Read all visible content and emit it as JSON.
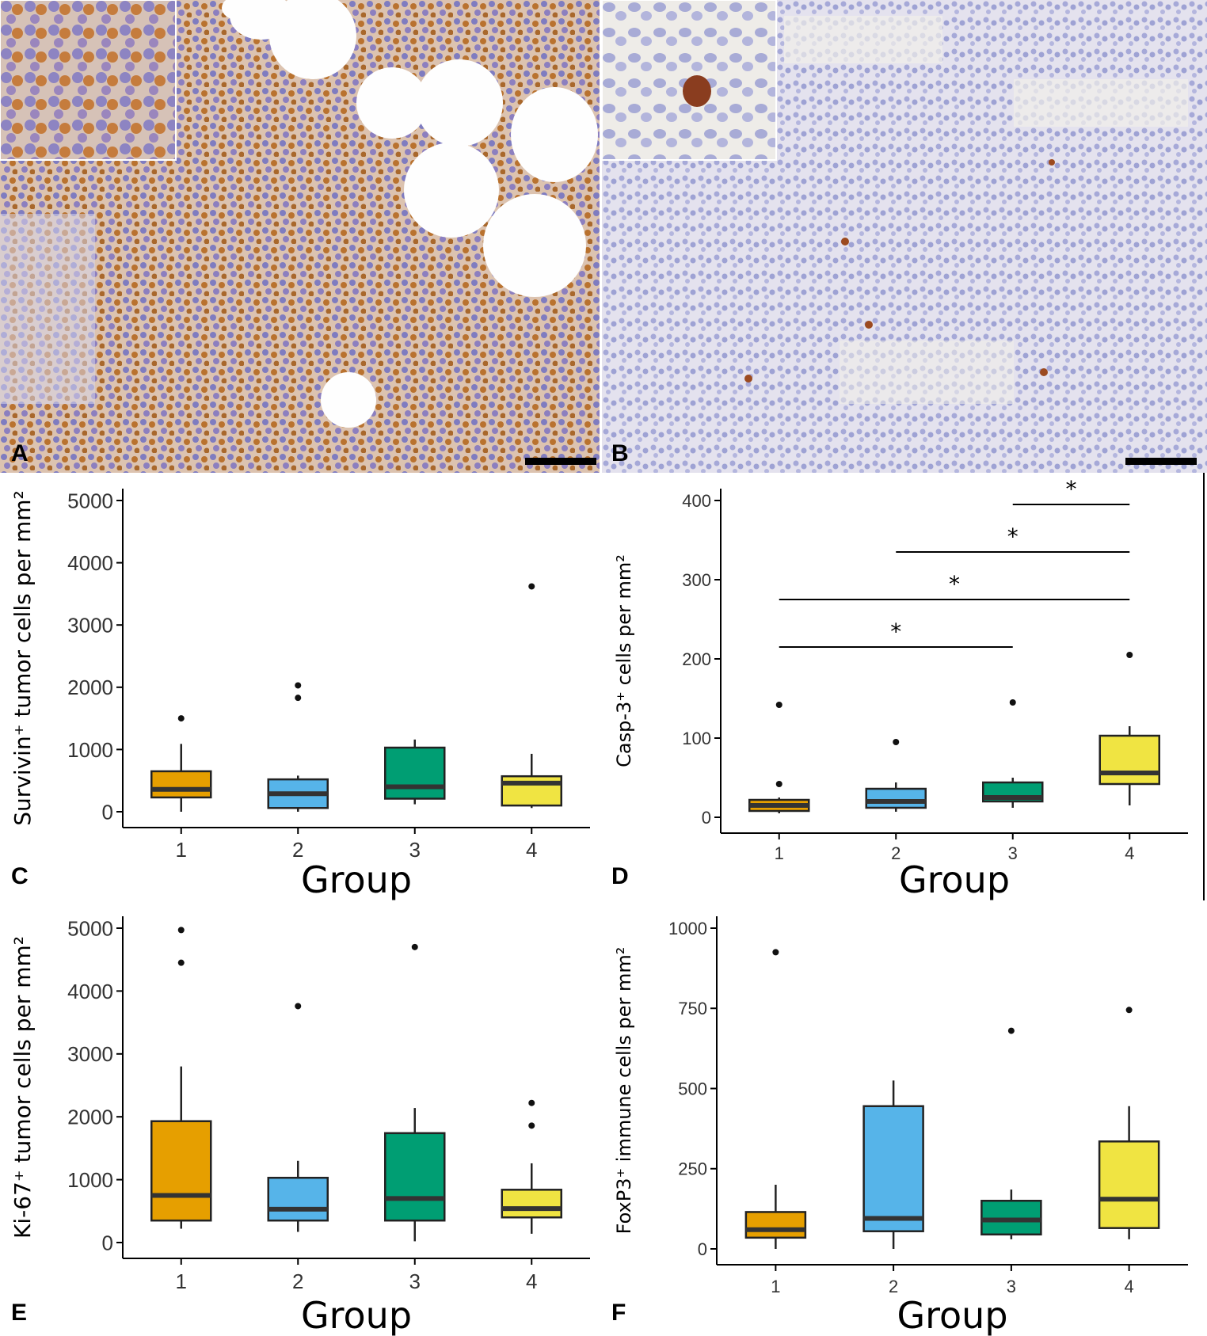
{
  "panels": {
    "a": {
      "letter": "A"
    },
    "b": {
      "letter": "B"
    },
    "c": {
      "letter": "C"
    },
    "d": {
      "letter": "D"
    },
    "e": {
      "letter": "E"
    },
    "f": {
      "letter": "F"
    }
  },
  "colors": {
    "group1": "#E69F00",
    "group2": "#56B4E9",
    "group3": "#009E73",
    "group4": "#F0E442"
  },
  "chart_data": [
    {
      "id": "c",
      "type": "box",
      "xlabel": "Group",
      "ylabel": "Survivin⁺ tumor cells per mm²",
      "categories": [
        "1",
        "2",
        "3",
        "4"
      ],
      "ylim": [
        0,
        5000
      ],
      "yticks": [
        0,
        1000,
        2000,
        3000,
        4000,
        5000
      ],
      "boxes": [
        {
          "group": "1",
          "whisker_low": 0,
          "q1": 230,
          "median": 360,
          "q3": 650,
          "whisker_high": 1090,
          "outliers": [
            1500
          ]
        },
        {
          "group": "2",
          "whisker_low": 0,
          "q1": 60,
          "median": 290,
          "q3": 520,
          "whisker_high": 580,
          "outliers": [
            1830,
            2030
          ]
        },
        {
          "group": "3",
          "whisker_low": 120,
          "q1": 210,
          "median": 400,
          "q3": 1030,
          "whisker_high": 1160,
          "outliers": []
        },
        {
          "group": "4",
          "whisker_low": 60,
          "q1": 100,
          "median": 460,
          "q3": 570,
          "whisker_high": 930,
          "outliers": [
            3620
          ]
        }
      ]
    },
    {
      "id": "d",
      "type": "box",
      "xlabel": "Group",
      "ylabel": "Casp-3⁺ cells per mm²",
      "categories": [
        "1",
        "2",
        "3",
        "4"
      ],
      "ylim": [
        0,
        400
      ],
      "yticks": [
        0,
        100,
        200,
        300,
        400
      ],
      "boxes": [
        {
          "group": "1",
          "whisker_low": 5,
          "q1": 8,
          "median": 15,
          "q3": 22,
          "whisker_high": 25,
          "outliers": [
            42,
            142
          ]
        },
        {
          "group": "2",
          "whisker_low": 7,
          "q1": 12,
          "median": 20,
          "q3": 36,
          "whisker_high": 44,
          "outliers": [
            95
          ]
        },
        {
          "group": "3",
          "whisker_low": 12,
          "q1": 20,
          "median": 25,
          "q3": 44,
          "whisker_high": 50,
          "outliers": [
            145
          ]
        },
        {
          "group": "4",
          "whisker_low": 15,
          "q1": 42,
          "median": 56,
          "q3": 103,
          "whisker_high": 115,
          "outliers": [
            205
          ]
        }
      ],
      "significance": [
        {
          "from": "1",
          "to": "3",
          "y": 215,
          "label": "*"
        },
        {
          "from": "1",
          "to": "4",
          "y": 275,
          "label": "*"
        },
        {
          "from": "2",
          "to": "4",
          "y": 335,
          "label": "*"
        },
        {
          "from": "3",
          "to": "4",
          "y": 395,
          "label": "*"
        }
      ]
    },
    {
      "id": "e",
      "type": "box",
      "xlabel": "Group",
      "ylabel": "Ki-67⁺ tumor cells per mm²",
      "categories": [
        "1",
        "2",
        "3",
        "4"
      ],
      "ylim": [
        0,
        5000
      ],
      "yticks": [
        0,
        1000,
        2000,
        3000,
        4000,
        5000
      ],
      "boxes": [
        {
          "group": "1",
          "whisker_low": 220,
          "q1": 350,
          "median": 750,
          "q3": 1930,
          "whisker_high": 2800,
          "outliers": [
            4450,
            4970
          ]
        },
        {
          "group": "2",
          "whisker_low": 170,
          "q1": 350,
          "median": 530,
          "q3": 1030,
          "whisker_high": 1300,
          "outliers": [
            3760
          ]
        },
        {
          "group": "3",
          "whisker_low": 20,
          "q1": 350,
          "median": 700,
          "q3": 1740,
          "whisker_high": 2140,
          "outliers": [
            4700
          ]
        },
        {
          "group": "4",
          "whisker_low": 140,
          "q1": 400,
          "median": 540,
          "q3": 840,
          "whisker_high": 1260,
          "outliers": [
            1860,
            2220
          ]
        }
      ]
    },
    {
      "id": "f",
      "type": "box",
      "xlabel": "Group",
      "ylabel": "FoxP3⁺ immune cells per mm²",
      "categories": [
        "1",
        "2",
        "3",
        "4"
      ],
      "ylim": [
        0,
        1000
      ],
      "yticks": [
        0,
        250,
        500,
        750,
        1000
      ],
      "boxes": [
        {
          "group": "1",
          "whisker_low": 0,
          "q1": 35,
          "median": 60,
          "q3": 115,
          "whisker_high": 200,
          "outliers": [
            925
          ]
        },
        {
          "group": "2",
          "whisker_low": 0,
          "q1": 55,
          "median": 95,
          "q3": 445,
          "whisker_high": 525,
          "outliers": []
        },
        {
          "group": "3",
          "whisker_low": 30,
          "q1": 45,
          "median": 90,
          "q3": 150,
          "whisker_high": 185,
          "outliers": [
            680
          ]
        },
        {
          "group": "4",
          "whisker_low": 30,
          "q1": 65,
          "median": 155,
          "q3": 335,
          "whisker_high": 445,
          "outliers": [
            745
          ]
        }
      ]
    }
  ]
}
